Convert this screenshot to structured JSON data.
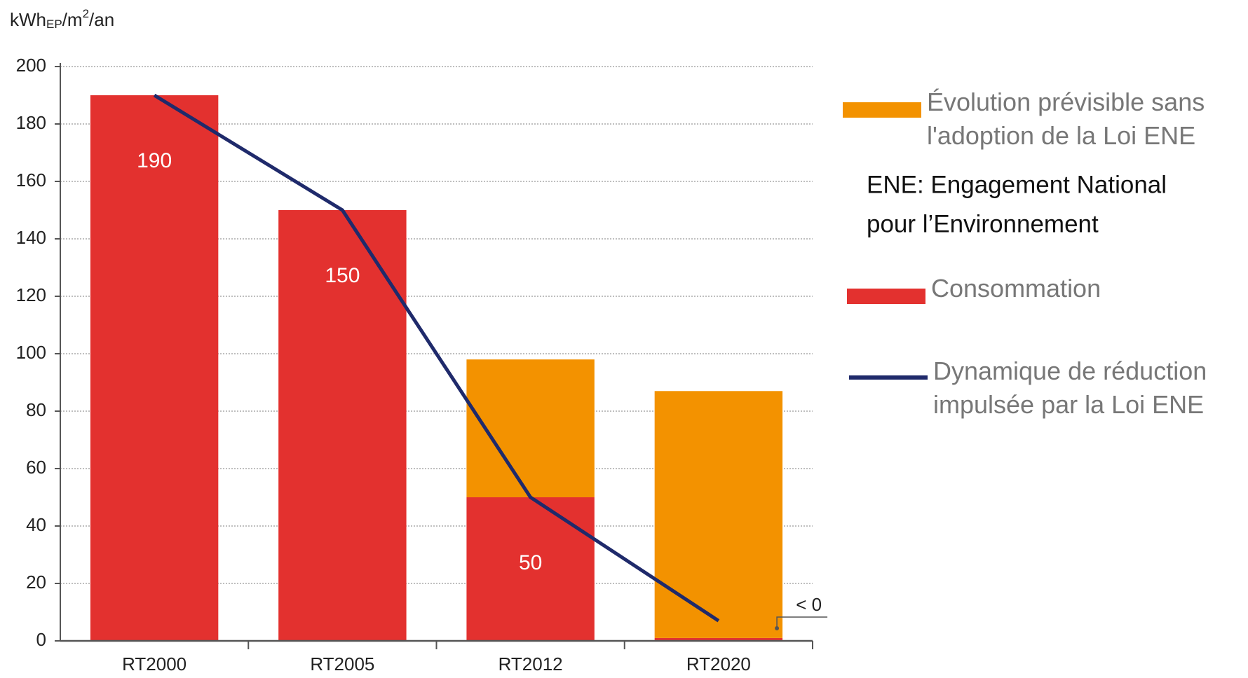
{
  "chart_data": {
    "type": "stacked_bar_line",
    "y_label": [
      "kWh",
      "EP",
      "/m",
      "2",
      "/an"
    ],
    "categories": [
      "RT2000",
      "RT2005",
      "RT2012",
      "RT2020"
    ],
    "series": [
      {
        "name": "Consommation",
        "color": "#e3312f",
        "values": [
          190,
          150,
          50,
          1
        ],
        "value_labels": [
          "190",
          "150",
          "50",
          null
        ]
      },
      {
        "name": "Évolution prévisible sans l'adoption de la Loi ENE",
        "color": "#f39200",
        "values": [
          0,
          0,
          48,
          86
        ]
      },
      {
        "name": "Dynamique de réduction impulsée par la Loi ENE",
        "color": "#1f2a6b",
        "type": "line",
        "values": [
          190,
          150,
          50,
          7
        ]
      }
    ],
    "annotations": [
      "< 0"
    ],
    "note": [
      "ENE: Engagement National",
      "pour l’Environnement"
    ],
    "ylim": [
      0,
      200
    ],
    "yticks": [
      0,
      20,
      40,
      60,
      80,
      100,
      120,
      140,
      160,
      180,
      200
    ],
    "grid": true
  }
}
